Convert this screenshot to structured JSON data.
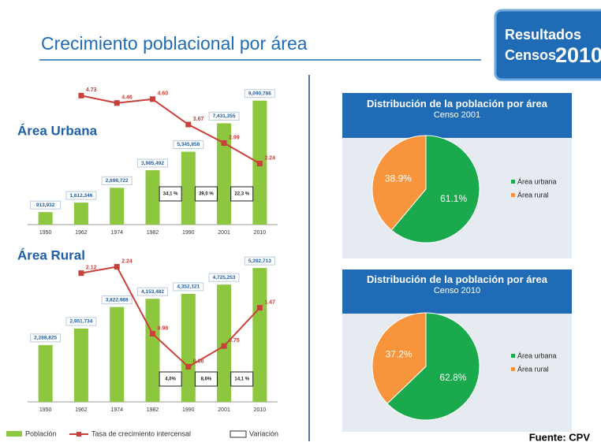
{
  "title": "Crecimiento poblacional por área",
  "logo": {
    "line1": "Resultados",
    "line2": "Censos",
    "year": "2010"
  },
  "source": "Fuente: CPV",
  "legend": {
    "population": "Población",
    "rate": "Tasa de crecimiento intercensal",
    "variation": "Variación"
  },
  "chart_data": [
    {
      "type": "bar",
      "title": "Área Urbana",
      "categories": [
        "1950",
        "1962",
        "1974",
        "1982",
        "1990",
        "2001",
        "2010"
      ],
      "ylim": [
        0,
        10000000
      ],
      "y2lim": [
        0,
        5
      ],
      "series": [
        {
          "name": "Población",
          "color": "#8dc63f",
          "values": [
            913932,
            1612346,
            2698722,
            3985492,
            5345858,
            7431355,
            9090786
          ],
          "value_labels": [
            "913,932",
            "1,612,346",
            "2,698,722",
            "3,985,492",
            "5,345,858",
            "7,431,355",
            "9,090,786"
          ]
        },
        {
          "name": "Tasa de crecimiento intercensal",
          "color": "#c9403a",
          "axis": "y2",
          "values": [
            null,
            4.73,
            4.46,
            4.6,
            3.67,
            2.99,
            2.24
          ],
          "value_labels": [
            null,
            "4.73",
            "4.46",
            "4.60",
            "3.67",
            "2.99",
            "2.24"
          ]
        },
        {
          "name": "Variación",
          "values": [
            null,
            null,
            null,
            null,
            34.1,
            39.0,
            22.3
          ],
          "value_labels": [
            null,
            null,
            null,
            null,
            "34,1 %",
            "39,0 %",
            "22,3 %"
          ]
        }
      ]
    },
    {
      "type": "bar",
      "title": "Área Rural",
      "categories": [
        "1950",
        "1962",
        "1974",
        "1982",
        "1990",
        "2001",
        "2010"
      ],
      "ylim": [
        0,
        6000000
      ],
      "y2lim": [
        -0.3,
        2.5
      ],
      "series": [
        {
          "name": "Población",
          "color": "#8dc63f",
          "values": [
            2288825,
            2951734,
            3822988,
            4153482,
            4352121,
            4725253,
            5392713
          ],
          "value_labels": [
            "2,288,825",
            "2,951,734",
            "3,822,988",
            "4,153,482",
            "4,352,121",
            "4,725,253",
            "5,392,713"
          ]
        },
        {
          "name": "Tasa de crecimiento intercensal",
          "color": "#c9403a",
          "axis": "y2",
          "values": [
            null,
            2.12,
            2.24,
            0.98,
            0.36,
            0.75,
            1.47
          ]
        },
        {
          "name": "Variación",
          "values": [
            null,
            null,
            null,
            null,
            4.0,
            8.6,
            14.1
          ],
          "value_labels": [
            null,
            null,
            null,
            null,
            "4,0%",
            "8,6%",
            "14,1 %"
          ]
        }
      ]
    },
    {
      "type": "pie",
      "title": "Distribución de la población por área",
      "subtitle": "Censo 2001",
      "categories": [
        "Área urbana",
        "Área rural"
      ],
      "values": [
        61.1,
        38.9
      ],
      "value_labels": [
        "61.1%",
        "38.9%"
      ],
      "colors": [
        "#1aa94c",
        "#f7943c"
      ]
    },
    {
      "type": "pie",
      "title": "Distribución de la población por área",
      "subtitle": "Censo 2010",
      "categories": [
        "Área urbana",
        "Área rural"
      ],
      "values": [
        62.8,
        37.2
      ],
      "value_labels": [
        "62.8%",
        "37.2%"
      ],
      "colors": [
        "#1aa94c",
        "#f7943c"
      ]
    }
  ]
}
